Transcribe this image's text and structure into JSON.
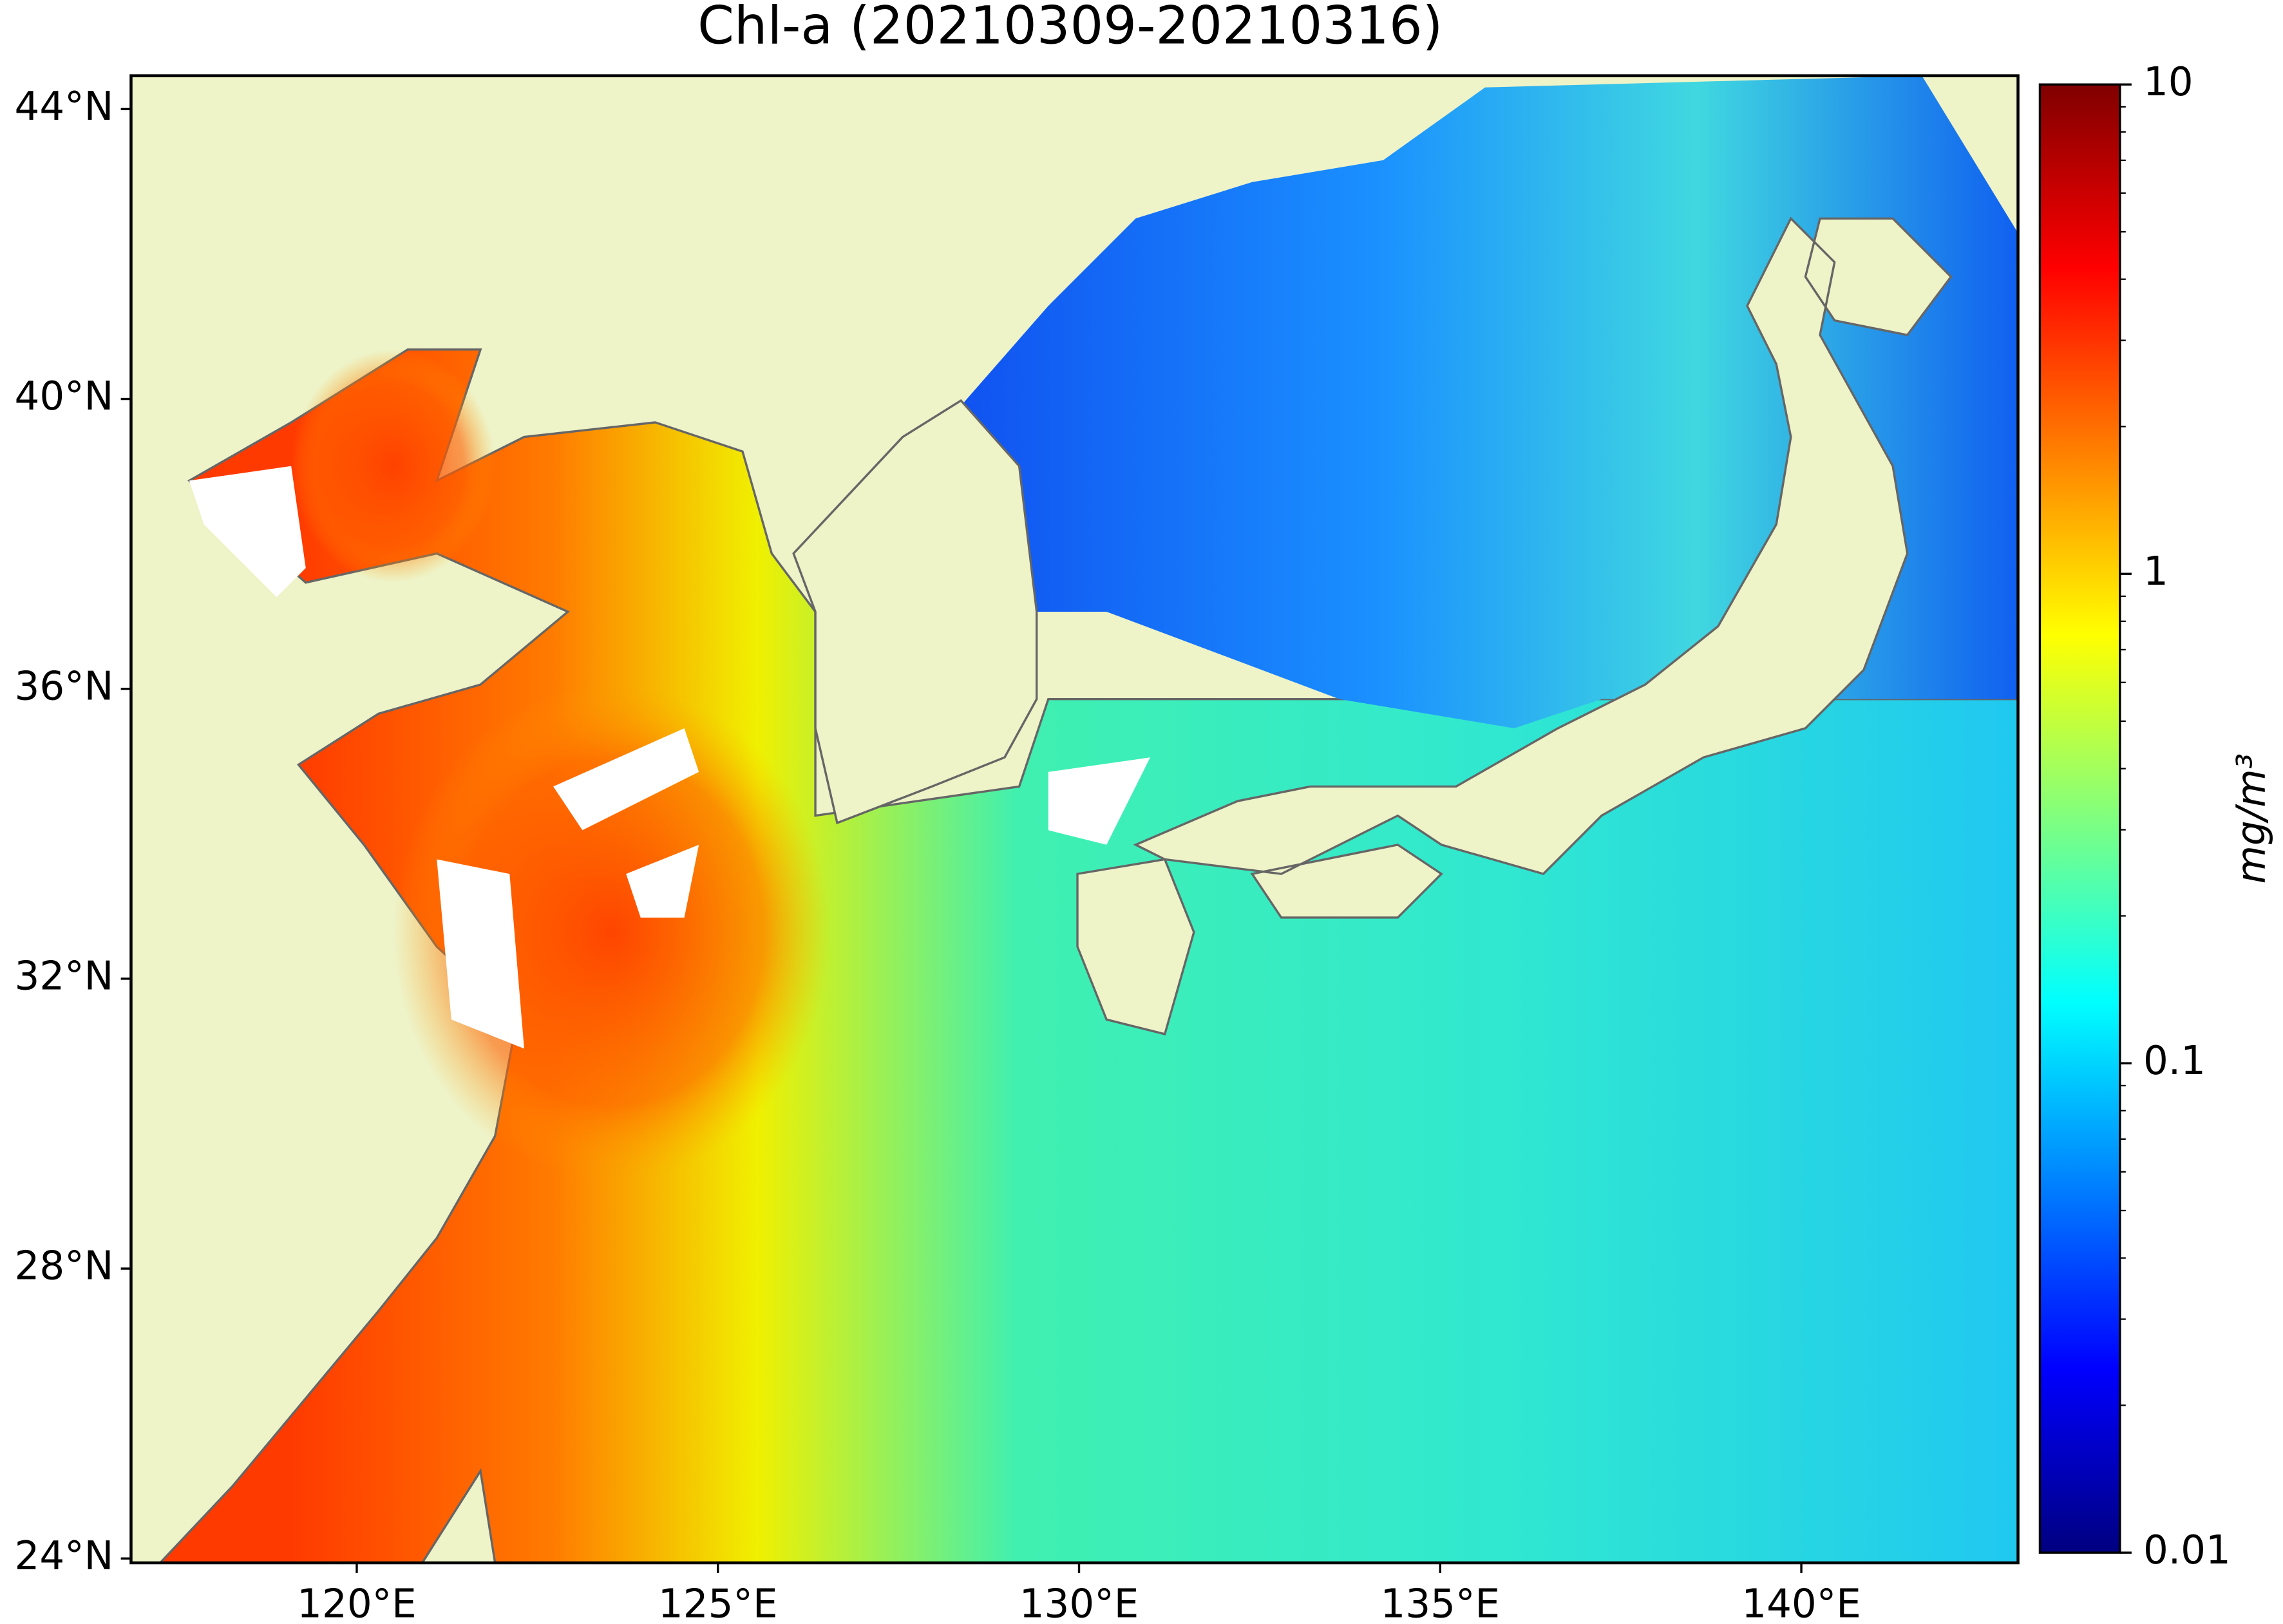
{
  "chart_data": {
    "type": "map",
    "title": "Chl-a (20210309-20210316)",
    "xlim": [
      116.875,
      143.0
    ],
    "ylim": [
      23.94,
      44.46
    ],
    "xticks": [
      {
        "value": 120,
        "label": "120°E"
      },
      {
        "value": 125,
        "label": "125°E"
      },
      {
        "value": 130,
        "label": "130°E"
      },
      {
        "value": 135,
        "label": "135°E"
      },
      {
        "value": 140,
        "label": "140°E"
      }
    ],
    "yticks": [
      {
        "value": 24,
        "label": "24°N"
      },
      {
        "value": 28,
        "label": "28°N"
      },
      {
        "value": 32,
        "label": "32°N"
      },
      {
        "value": 36,
        "label": "36°N"
      },
      {
        "value": 40,
        "label": "40°N"
      },
      {
        "value": 44,
        "label": "44°N"
      }
    ],
    "colorbar": {
      "colormap": "jet",
      "scale": "log",
      "lim": [
        0.01,
        10
      ],
      "ticks": [
        0.01,
        0.1,
        1,
        10
      ],
      "minor_ticks": [
        0.02,
        0.03,
        0.04,
        0.05,
        0.06,
        0.07,
        0.08,
        0.09,
        0.2,
        0.3,
        0.4,
        0.5,
        0.6,
        0.7,
        0.8,
        0.9,
        2,
        3,
        4,
        5,
        6,
        7,
        8,
        9
      ],
      "label": "mg/m³"
    }
  }
}
